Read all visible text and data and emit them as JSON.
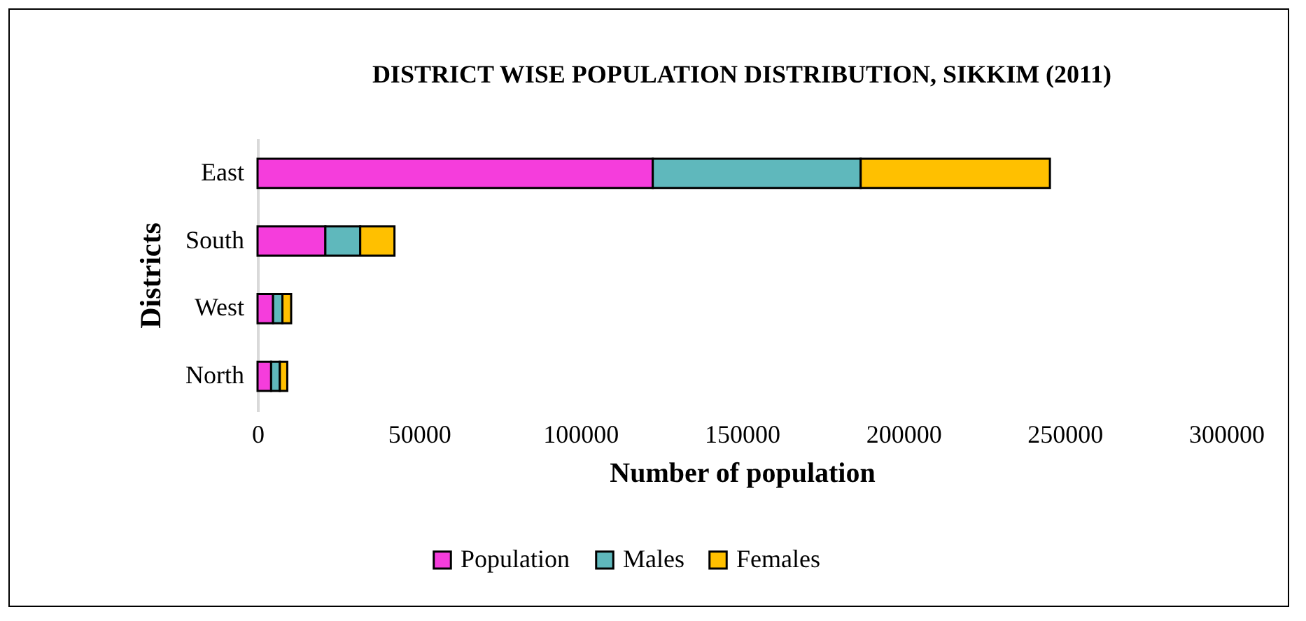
{
  "chart_data": {
    "type": "bar",
    "orientation": "horizontal",
    "stacked": true,
    "title": "DISTRICT WISE POPULATION DISTRIBUTION, SIKKIM (2011)",
    "xlabel": "Number of population",
    "ylabel": "Districts",
    "categories": [
      "East",
      "South",
      "West",
      "North"
    ],
    "series": [
      {
        "name": "Population",
        "color": "#f53ddc",
        "values": [
          122400,
          21000,
          4800,
          4200
        ]
      },
      {
        "name": "Males",
        "color": "#5fb8bc",
        "values": [
          64400,
          10800,
          2900,
          2700
        ]
      },
      {
        "name": "Females",
        "color": "#ffc000",
        "values": [
          58600,
          10600,
          2700,
          2300
        ]
      }
    ],
    "xlim": [
      0,
      300000
    ],
    "xticks": [
      0,
      50000,
      100000,
      150000,
      200000,
      250000,
      300000
    ],
    "grid": false,
    "legend": "bottom"
  }
}
